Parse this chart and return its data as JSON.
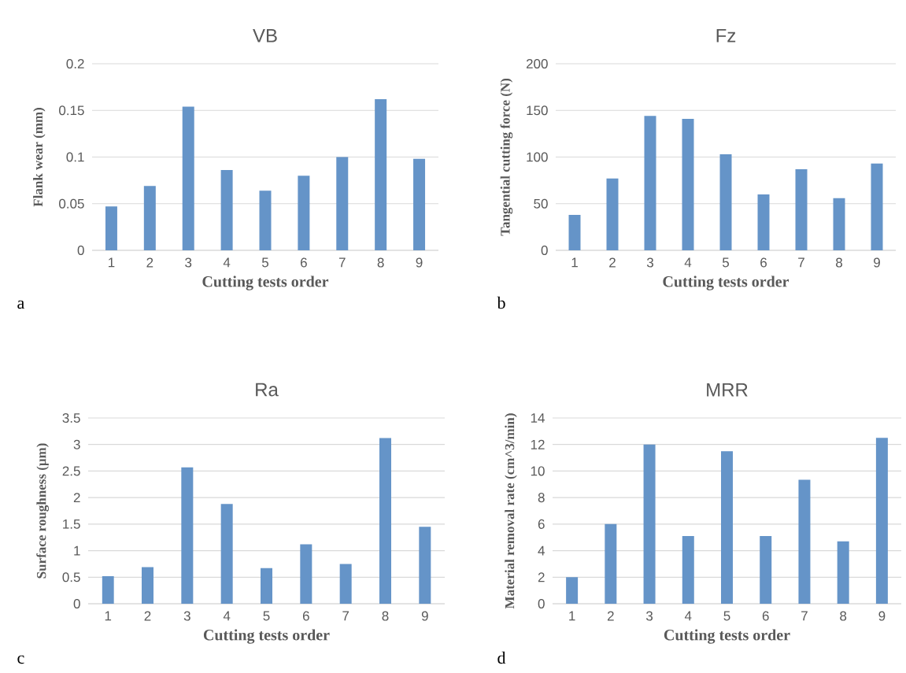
{
  "chart_data": [
    {
      "type": "bar",
      "title": "VB",
      "xlabel": "Cutting tests order",
      "ylabel": "Flank wear (mm)",
      "categories": [
        "1",
        "2",
        "3",
        "4",
        "5",
        "6",
        "7",
        "8",
        "9"
      ],
      "values": [
        0.047,
        0.069,
        0.154,
        0.086,
        0.064,
        0.08,
        0.1,
        0.162,
        0.098
      ],
      "color": "#6594c8",
      "ylim": [
        0,
        0.2
      ],
      "yticks": [
        0,
        0.05,
        0.1,
        0.15,
        0.2
      ],
      "grid": "y",
      "annotations": [
        "a"
      ]
    },
    {
      "type": "bar",
      "title": "Fz",
      "xlabel": "Cutting tests order",
      "ylabel": "Tangential cutting force (N)",
      "categories": [
        "1",
        "2",
        "3",
        "4",
        "5",
        "6",
        "7",
        "8",
        "9"
      ],
      "values": [
        38,
        77,
        144,
        141,
        103,
        60,
        87,
        56,
        93
      ],
      "color": "#6594c8",
      "ylim": [
        0,
        200
      ],
      "yticks": [
        0,
        50,
        100,
        150,
        200
      ],
      "grid": "y",
      "annotations": [
        "b"
      ]
    },
    {
      "type": "bar",
      "title": "Ra",
      "xlabel": "Cutting tests order",
      "ylabel": "Surface roughness (μm)",
      "categories": [
        "1",
        "2",
        "3",
        "4",
        "5",
        "6",
        "7",
        "8",
        "9"
      ],
      "values": [
        0.52,
        0.69,
        2.57,
        1.88,
        0.67,
        1.12,
        0.75,
        3.12,
        1.45
      ],
      "color": "#6594c8",
      "ylim": [
        0,
        3.5
      ],
      "yticks": [
        0,
        0.5,
        1,
        1.5,
        2,
        2.5,
        3,
        3.5
      ],
      "grid": "y",
      "annotations": [
        "c"
      ]
    },
    {
      "type": "bar",
      "title": "MRR",
      "xlabel": "Cutting tests order",
      "ylabel": "Material removal rate (cm^3/min)",
      "categories": [
        "1",
        "2",
        "3",
        "4",
        "5",
        "6",
        "7",
        "8",
        "9"
      ],
      "values": [
        2,
        6,
        12,
        5.1,
        11.5,
        5.1,
        9.35,
        4.7,
        12.5
      ],
      "color": "#6594c8",
      "ylim": [
        0,
        14
      ],
      "yticks": [
        0,
        2,
        4,
        6,
        8,
        10,
        12,
        14
      ],
      "grid": "y",
      "annotations": [
        "d"
      ]
    }
  ]
}
